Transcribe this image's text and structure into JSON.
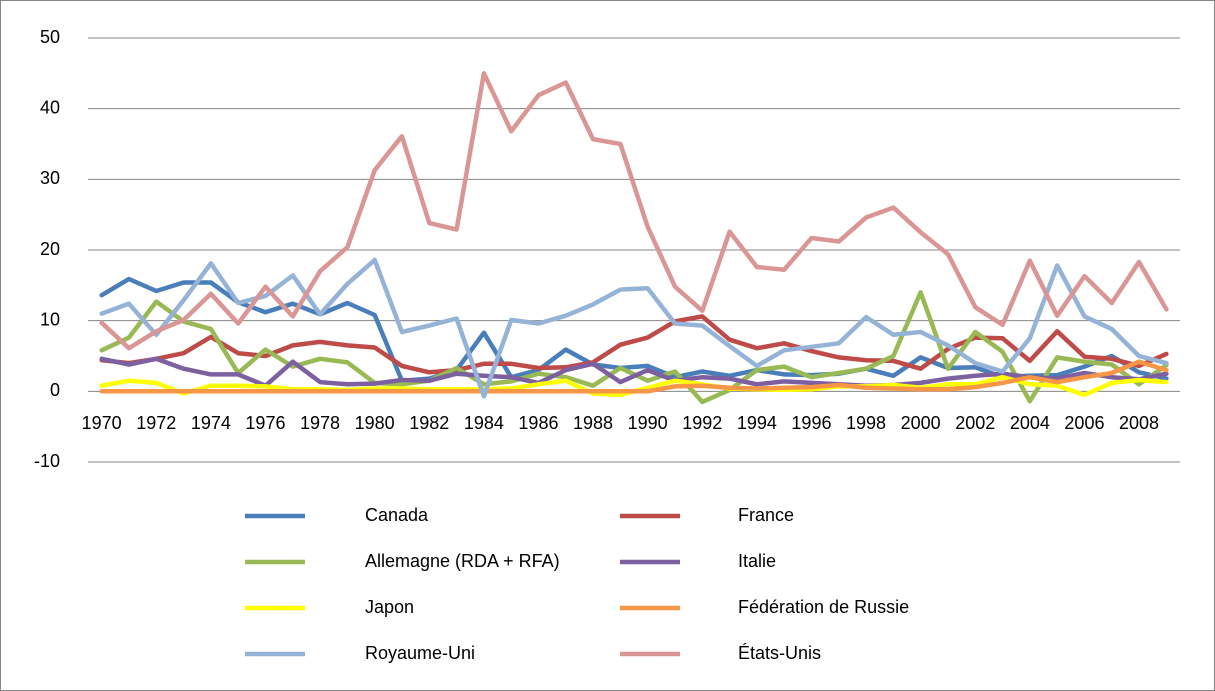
{
  "chart_data": {
    "type": "line",
    "categories": [
      "1970",
      null,
      "1972",
      null,
      "1974",
      null,
      "1976",
      null,
      "1978",
      null,
      "1980",
      null,
      "1982",
      null,
      "1984",
      null,
      "1986",
      null,
      "1988",
      null,
      "1990",
      null,
      "1992",
      null,
      "1994",
      null,
      "1996",
      null,
      "1998",
      null,
      "2000",
      null,
      "2002",
      null,
      "2004",
      null,
      "2006",
      null,
      "2008",
      null
    ],
    "ylim": [
      -10,
      50
    ],
    "yticks": [
      -10,
      0,
      10,
      20,
      30,
      40,
      50
    ],
    "grid": true,
    "series": [
      {
        "name": "Canada",
        "color": "#4a7ebb",
        "values": [
          13.6,
          15.9,
          14.2,
          15.4,
          15.4,
          12.6,
          11.2,
          12.4,
          10.9,
          12.5,
          10.8,
          1.5,
          1.8,
          3.0,
          8.3,
          2.0,
          3.0,
          5.9,
          3.8,
          3.3,
          3.6,
          2.0,
          2.8,
          2.2,
          3.0,
          2.4,
          2.3,
          2.5,
          3.2,
          2.2,
          4.8,
          3.3,
          3.4,
          2.0,
          2.2,
          2.3,
          3.5,
          5.0,
          2.7,
          1.8
        ]
      },
      {
        "name": "France",
        "color": "#be4b48",
        "values": [
          4.4,
          4.0,
          4.6,
          5.4,
          7.7,
          5.4,
          5.0,
          6.5,
          7.0,
          6.5,
          6.2,
          3.6,
          2.7,
          3.0,
          3.9,
          3.9,
          3.3,
          3.4,
          4.1,
          6.6,
          7.6,
          9.9,
          10.6,
          7.3,
          6.1,
          6.8,
          5.7,
          4.8,
          4.4,
          4.3,
          3.2,
          6.0,
          7.6,
          7.5,
          4.3,
          8.5,
          4.9,
          4.6,
          3.6,
          5.3
        ]
      },
      {
        "name": "Allemagne (RDA + RFA)",
        "color": "#98b954",
        "values": [
          5.8,
          7.6,
          12.7,
          9.9,
          8.8,
          2.6,
          5.9,
          3.5,
          4.6,
          4.1,
          1.2,
          1.0,
          1.5,
          3.3,
          1.0,
          1.4,
          2.5,
          2.0,
          0.8,
          3.3,
          1.5,
          2.8,
          -1.5,
          0.2,
          3.0,
          3.5,
          2.0,
          2.6,
          3.2,
          5.0,
          14.0,
          3.2,
          8.4,
          5.6,
          -1.4,
          4.8,
          4.2,
          3.8,
          1.0,
          3.7
        ]
      },
      {
        "name": "Italie",
        "color": "#7d60a0",
        "values": [
          4.6,
          3.8,
          4.6,
          3.2,
          2.4,
          2.4,
          0.8,
          4.2,
          1.3,
          1.0,
          1.1,
          1.6,
          1.5,
          2.5,
          2.2,
          2.0,
          1.2,
          3.0,
          3.9,
          1.3,
          3.0,
          1.5,
          2.0,
          1.8,
          1.0,
          1.4,
          1.2,
          1.0,
          0.8,
          0.9,
          1.2,
          1.8,
          2.2,
          2.5,
          2.0,
          1.8,
          2.6,
          2.0,
          1.7,
          2.5
        ]
      },
      {
        "name": "Japon",
        "color": "#ffff00",
        "values": [
          0.8,
          1.5,
          1.2,
          -0.3,
          0.8,
          0.8,
          0.7,
          0.3,
          0.3,
          0.2,
          0.4,
          0.4,
          0.3,
          0.3,
          0.3,
          0.4,
          1.0,
          1.5,
          -0.3,
          -0.5,
          0.5,
          1.5,
          1.0,
          0.4,
          0.3,
          0.2,
          0.3,
          0.7,
          0.7,
          0.9,
          0.5,
          1.0,
          1.0,
          2.0,
          1.0,
          0.8,
          -0.5,
          1.2,
          1.6,
          1.3
        ]
      },
      {
        "name": "Fédération de Russie",
        "color": "#f79646",
        "values": [
          0,
          0,
          0,
          0,
          0,
          0,
          0,
          0,
          0,
          0,
          0,
          0,
          0,
          0,
          0,
          0,
          0,
          0,
          0,
          0,
          0,
          0.7,
          0.8,
          0.5,
          0.4,
          0.5,
          0.6,
          0.9,
          0.5,
          0.4,
          0.3,
          0.3,
          0.6,
          1.2,
          2.0,
          1.3,
          2.0,
          2.6,
          4.2,
          3.0
        ]
      },
      {
        "name": "Royaume-Uni",
        "color": "#95b3d7",
        "values": [
          11.0,
          12.4,
          8.0,
          12.9,
          18.1,
          12.5,
          13.5,
          16.4,
          10.9,
          15.2,
          18.6,
          8.4,
          9.3,
          10.3,
          -0.7,
          10.1,
          9.6,
          10.7,
          12.3,
          14.4,
          14.6,
          9.6,
          9.3,
          6.4,
          3.6,
          5.8,
          6.3,
          6.8,
          10.5,
          8.0,
          8.4,
          6.5,
          4.0,
          2.8,
          7.5,
          17.8,
          10.6,
          8.8,
          5.0,
          4.0
        ]
      },
      {
        "name": "États-Unis",
        "color": "#d99694",
        "values": [
          9.7,
          6.1,
          8.5,
          10.1,
          13.8,
          9.6,
          14.8,
          10.6,
          17.0,
          20.4,
          31.3,
          36.1,
          23.8,
          22.9,
          45.0,
          36.8,
          41.9,
          43.7,
          35.7,
          35.0,
          23.3,
          14.8,
          11.4,
          22.6,
          17.6,
          17.2,
          21.7,
          21.2,
          24.6,
          26.0,
          22.5,
          19.4,
          11.9,
          9.4,
          18.5,
          10.7,
          16.3,
          12.5,
          18.3,
          11.6
        ]
      }
    ]
  }
}
